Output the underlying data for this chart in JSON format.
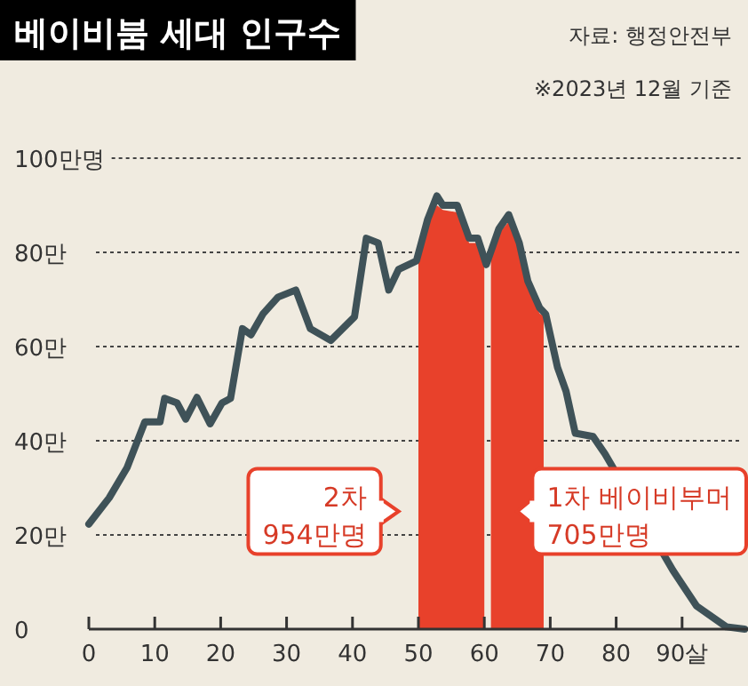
{
  "chart_data": {
    "type": "line",
    "title": "베이비붐 세대 인구수",
    "annotations": [
      "자료: 행정안전부",
      "※2023년 12월 기준",
      "2차 954만명",
      "1차 베이비부머 705만명"
    ],
    "xlim": [
      0,
      100
    ],
    "xticks": [
      0,
      10,
      20,
      30,
      40,
      50,
      60,
      70,
      80,
      {
        "value": 90,
        "label": "90살"
      }
    ],
    "ylim": [
      0,
      100
    ],
    "yticks": [
      0,
      {
        "value": 20,
        "label": "20만"
      },
      {
        "value": 40,
        "label": "40만"
      },
      {
        "value": 60,
        "label": "60만"
      },
      {
        "value": 80,
        "label": "80만"
      },
      {
        "value": 100,
        "label": "100만명"
      }
    ],
    "grid": "y",
    "series": [
      {
        "color": "#3f5258",
        "x": [
          0,
          3.1,
          5.8,
          8.5,
          10.8,
          11.5,
          13.4,
          14.7,
          16.4,
          18.4,
          20.2,
          21.5,
          23.3,
          24.6,
          26.4,
          28.7,
          31.4,
          33.6,
          36.7,
          38.5,
          40.3,
          42.1,
          43.9,
          45.5,
          47,
          49.7,
          51.4,
          52.8,
          53.7,
          55.9,
          57.7,
          59,
          60.3,
          62.2,
          63.7,
          65.3,
          66.6,
          68.4,
          69.3,
          71.1,
          72.4,
          73.8,
          76.5,
          78.3,
          88.6,
          92.2,
          96.7,
          99.5
        ],
        "values": [
          22.3,
          27.9,
          34.3,
          44,
          44,
          49,
          48,
          44.6,
          49.2,
          43.6,
          48,
          49,
          63.8,
          62.5,
          66.9,
          70.5,
          72,
          63.8,
          61.3,
          63.8,
          66.3,
          83,
          82,
          72,
          76.4,
          78.2,
          87,
          92,
          90,
          90,
          83,
          83,
          77.4,
          85,
          88,
          82,
          73.9,
          68.2,
          66.9,
          55.6,
          50.5,
          41.6,
          40.9,
          37.2,
          12.5,
          4.9,
          0.5,
          0
        ]
      },
      {
        "type": "area",
        "color": "#e8412b",
        "x": [
          50,
          51.4,
          52.8,
          53.7,
          55.9,
          57.7,
          59,
          60
        ],
        "values": [
          78.5,
          86,
          90,
          89,
          88.5,
          82,
          82,
          78
        ]
      },
      {
        "type": "area",
        "color": "#e8412b",
        "x": [
          61,
          62.2,
          63.7,
          65.3,
          66.6,
          68.4,
          69
        ],
        "values": [
          79,
          84,
          86.5,
          80.5,
          72.5,
          67,
          66.5
        ]
      }
    ]
  }
}
